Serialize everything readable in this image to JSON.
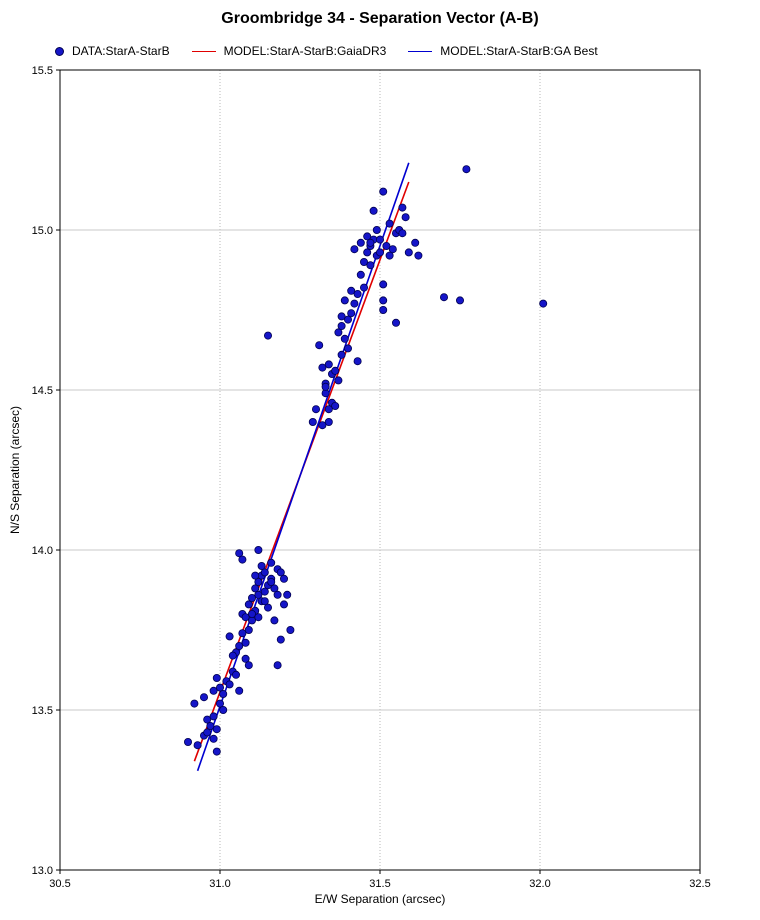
{
  "chart_data": {
    "type": "scatter",
    "title": "Groombridge 34 - Separation Vector (A-B)",
    "xlabel": "E/W Separation (arcsec)",
    "ylabel": "N/S Separation (arcsec)",
    "xlim": [
      30.5,
      32.5
    ],
    "ylim": [
      13.0,
      15.5
    ],
    "xticks": [
      "30.5",
      "31.0",
      "31.5",
      "32.0",
      "32.5"
    ],
    "yticks": [
      "13.0",
      "13.5",
      "14.0",
      "14.5",
      "15.0",
      "15.5"
    ],
    "grid": true,
    "legend_position": "top-left",
    "series": [
      {
        "name": "DATA:StarA-StarB",
        "kind": "points",
        "color": "#1515c8",
        "points": [
          [
            30.9,
            13.4
          ],
          [
            30.92,
            13.52
          ],
          [
            30.93,
            13.39
          ],
          [
            30.95,
            13.42
          ],
          [
            30.95,
            13.54
          ],
          [
            30.96,
            13.43
          ],
          [
            30.96,
            13.47
          ],
          [
            30.97,
            13.45
          ],
          [
            30.98,
            13.48
          ],
          [
            30.98,
            13.41
          ],
          [
            30.99,
            13.37
          ],
          [
            30.99,
            13.44
          ],
          [
            30.98,
            13.56
          ],
          [
            30.99,
            13.6
          ],
          [
            31.0,
            13.52
          ],
          [
            31.0,
            13.57
          ],
          [
            31.01,
            13.55
          ],
          [
            31.02,
            13.59
          ],
          [
            31.01,
            13.5
          ],
          [
            31.03,
            13.73
          ],
          [
            31.04,
            13.62
          ],
          [
            31.05,
            13.61
          ],
          [
            31.06,
            13.56
          ],
          [
            31.05,
            13.68
          ],
          [
            31.06,
            13.7
          ],
          [
            31.07,
            13.74
          ],
          [
            31.06,
            13.99
          ],
          [
            31.07,
            13.97
          ],
          [
            31.08,
            13.66
          ],
          [
            31.09,
            13.64
          ],
          [
            31.07,
            13.8
          ],
          [
            31.08,
            13.79
          ],
          [
            31.09,
            13.75
          ],
          [
            31.09,
            13.83
          ],
          [
            31.1,
            13.78
          ],
          [
            31.1,
            13.85
          ],
          [
            31.11,
            13.81
          ],
          [
            31.11,
            13.88
          ],
          [
            31.12,
            13.86
          ],
          [
            31.12,
            13.9
          ],
          [
            31.13,
            13.84
          ],
          [
            31.13,
            13.92
          ],
          [
            31.12,
            14.0
          ],
          [
            31.14,
            13.87
          ],
          [
            31.14,
            13.93
          ],
          [
            31.15,
            13.89
          ],
          [
            31.15,
            13.82
          ],
          [
            31.16,
            13.91
          ],
          [
            31.16,
            13.96
          ],
          [
            31.17,
            13.88
          ],
          [
            31.17,
            13.78
          ],
          [
            31.18,
            13.94
          ],
          [
            31.18,
            13.86
          ],
          [
            31.18,
            13.64
          ],
          [
            31.19,
            13.72
          ],
          [
            31.19,
            13.93
          ],
          [
            31.2,
            13.83
          ],
          [
            31.21,
            13.86
          ],
          [
            31.22,
            13.75
          ],
          [
            31.2,
            13.91
          ],
          [
            31.15,
            14.67
          ],
          [
            31.13,
            13.95
          ],
          [
            31.11,
            13.92
          ],
          [
            31.03,
            13.58
          ],
          [
            31.04,
            13.67
          ],
          [
            31.08,
            13.71
          ],
          [
            31.1,
            13.8
          ],
          [
            31.14,
            13.84
          ],
          [
            31.16,
            13.9
          ],
          [
            31.12,
            13.79
          ],
          [
            31.29,
            14.4
          ],
          [
            31.3,
            14.44
          ],
          [
            31.31,
            14.64
          ],
          [
            31.32,
            14.39
          ],
          [
            31.32,
            14.57
          ],
          [
            31.33,
            14.49
          ],
          [
            31.33,
            14.52
          ],
          [
            31.34,
            14.58
          ],
          [
            31.34,
            14.44
          ],
          [
            31.34,
            14.4
          ],
          [
            31.35,
            14.46
          ],
          [
            31.35,
            14.55
          ],
          [
            31.36,
            14.45
          ],
          [
            31.37,
            14.53
          ],
          [
            31.37,
            14.68
          ],
          [
            31.38,
            14.61
          ],
          [
            31.38,
            14.7
          ],
          [
            31.39,
            14.66
          ],
          [
            31.39,
            14.78
          ],
          [
            31.4,
            14.72
          ],
          [
            31.4,
            14.63
          ],
          [
            31.41,
            14.74
          ],
          [
            31.41,
            14.81
          ],
          [
            31.42,
            14.77
          ],
          [
            31.42,
            14.94
          ],
          [
            31.43,
            14.8
          ],
          [
            31.43,
            14.59
          ],
          [
            31.44,
            14.86
          ],
          [
            31.44,
            14.96
          ],
          [
            31.45,
            14.9
          ],
          [
            31.45,
            14.82
          ],
          [
            31.46,
            14.93
          ],
          [
            31.46,
            14.98
          ],
          [
            31.47,
            14.89
          ],
          [
            31.47,
            14.95
          ],
          [
            31.48,
            15.06
          ],
          [
            31.48,
            14.97
          ],
          [
            31.49,
            14.92
          ],
          [
            31.49,
            15.0
          ],
          [
            31.5,
            14.93
          ],
          [
            31.51,
            15.12
          ],
          [
            31.51,
            14.83
          ],
          [
            31.51,
            14.78
          ],
          [
            31.51,
            14.75
          ],
          [
            31.52,
            14.95
          ],
          [
            31.53,
            14.92
          ],
          [
            31.53,
            15.02
          ],
          [
            31.54,
            14.94
          ],
          [
            31.55,
            14.99
          ],
          [
            31.55,
            14.71
          ],
          [
            31.56,
            15.0
          ],
          [
            31.57,
            15.07
          ],
          [
            31.57,
            14.99
          ],
          [
            31.58,
            15.04
          ],
          [
            31.59,
            14.93
          ],
          [
            31.61,
            14.96
          ],
          [
            31.62,
            14.92
          ],
          [
            31.5,
            14.97
          ],
          [
            31.47,
            14.96
          ],
          [
            31.36,
            14.56
          ],
          [
            31.38,
            14.73
          ],
          [
            31.33,
            14.51
          ],
          [
            31.7,
            14.79
          ],
          [
            31.75,
            14.78
          ],
          [
            31.77,
            15.19
          ],
          [
            32.01,
            14.77
          ]
        ]
      },
      {
        "name": "MODEL:StarA-StarB:GaiaDR3",
        "kind": "line",
        "color": "#e00000",
        "points": [
          [
            30.92,
            13.34
          ],
          [
            31.59,
            15.15
          ]
        ]
      },
      {
        "name": "MODEL:StarA-StarB:GA Best",
        "kind": "line",
        "color": "#0000d0",
        "points": [
          [
            30.93,
            13.31
          ],
          [
            31.59,
            15.21
          ]
        ]
      }
    ]
  }
}
